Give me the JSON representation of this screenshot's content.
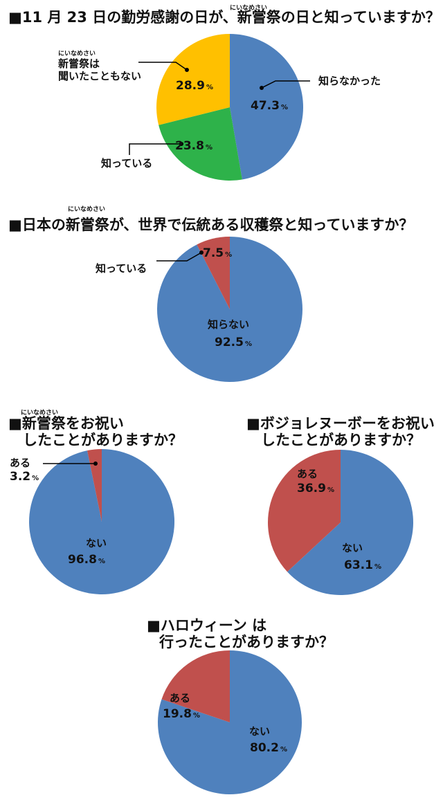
{
  "colors": {
    "blue": "#4f81bd",
    "green": "#2eb24a",
    "yellow": "#ffc000",
    "red": "#c0504d"
  },
  "chart_data": [
    {
      "type": "pie",
      "title_lines": [
        "■11 月 23 日の勤労感謝の日が、新嘗祭の日と知っていますか？"
      ],
      "ruby": "にいなめさい",
      "slices": [
        {
          "category_lines": [
            "知らなかった"
          ],
          "value": 47.3,
          "value_text": "47.3",
          "color": "blue"
        },
        {
          "category_lines": [
            "知っている"
          ],
          "value": 23.8,
          "value_text": "23.8",
          "color": "green"
        },
        {
          "category_lines": [
            "新嘗祭は",
            "聞いたこともない"
          ],
          "category_ruby": "にいなめさい",
          "value": 28.9,
          "value_text": "28.9",
          "color": "yellow"
        }
      ],
      "unit": "%"
    },
    {
      "type": "pie",
      "title_lines": [
        "■日本の新嘗祭が、世界で伝統ある収穫祭と知っていますか？"
      ],
      "ruby": "にいなめさい",
      "slices": [
        {
          "category_lines": [
            "知らない"
          ],
          "value": 92.5,
          "value_text": "92.5",
          "color": "blue"
        },
        {
          "category_lines": [
            "知っている"
          ],
          "value": 7.5,
          "value_text": "7.5",
          "color": "red"
        }
      ],
      "unit": "%"
    },
    {
      "type": "pie",
      "title_lines": [
        "■新嘗祭をお祝い",
        "したことがありますか？"
      ],
      "ruby": "にいなめさい",
      "slices": [
        {
          "category_lines": [
            "ない"
          ],
          "value": 96.8,
          "value_text": "96.8",
          "color": "blue"
        },
        {
          "category_lines": [
            "ある"
          ],
          "value": 3.2,
          "value_text": "3.2",
          "color": "red"
        }
      ],
      "unit": "%"
    },
    {
      "type": "pie",
      "title_lines": [
        "■ボジョレヌーボーをお祝い",
        "したことがありますか？"
      ],
      "slices": [
        {
          "category_lines": [
            "ない"
          ],
          "value": 63.1,
          "value_text": "63.1",
          "color": "blue"
        },
        {
          "category_lines": [
            "ある"
          ],
          "value": 36.9,
          "value_text": "36.9",
          "color": "red"
        }
      ],
      "unit": "%"
    },
    {
      "type": "pie",
      "title_lines": [
        "■ハロウィーン は",
        "行ったことがありますか？"
      ],
      "slices": [
        {
          "category_lines": [
            "ない"
          ],
          "value": 80.2,
          "value_text": "80.2",
          "color": "blue"
        },
        {
          "category_lines": [
            "ある"
          ],
          "value": 19.8,
          "value_text": "19.8",
          "color": "red"
        }
      ],
      "unit": "%"
    }
  ]
}
